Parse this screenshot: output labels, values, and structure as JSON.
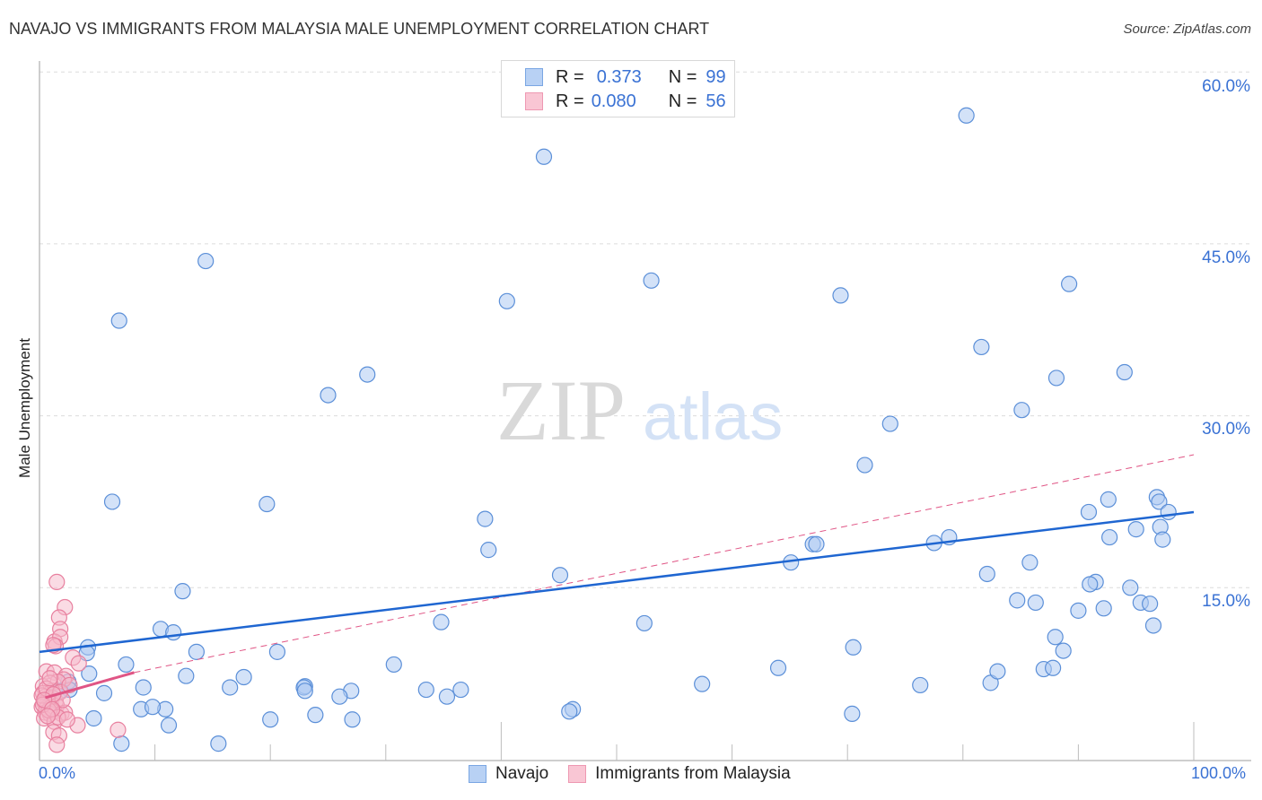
{
  "header": {
    "title": "NAVAJO VS IMMIGRANTS FROM MALAYSIA MALE UNEMPLOYMENT CORRELATION CHART",
    "source": "Source: ZipAtlas.com"
  },
  "legend_top": {
    "rows": [
      {
        "r_label": "R =",
        "r_value": "0.373",
        "n_label": "N =",
        "n_value": "99"
      },
      {
        "r_label": "R =",
        "r_value": "0.080",
        "n_label": "N =",
        "n_value": "56"
      }
    ]
  },
  "legend_bottom": {
    "items": [
      {
        "label": "Navajo"
      },
      {
        "label": "Immigrants from Malaysia"
      }
    ]
  },
  "axes": {
    "ylabel": "Male Unemployment",
    "x_ticks": [
      "0.0%",
      "100.0%"
    ],
    "y_ticks": [
      "60.0%",
      "45.0%",
      "30.0%",
      "15.0%"
    ]
  },
  "watermark": {
    "zip": "ZIP",
    "atlas": "atlas"
  },
  "colors": {
    "navajo_fill": "#aecbf2",
    "navajo_stroke": "#5b8fd8",
    "navajo_line": "#1f66d1",
    "malaysia_fill": "#f6b7c9",
    "malaysia_stroke": "#e8809f",
    "malaysia_line": "#e05585",
    "axis_text": "#3a72d4"
  },
  "chart_data": {
    "type": "scatter",
    "title": "NAVAJO VS IMMIGRANTS FROM MALAYSIA MALE UNEMPLOYMENT CORRELATION CHART",
    "xlabel": "",
    "ylabel": "Male Unemployment",
    "xlim": [
      0,
      100
    ],
    "ylim": [
      0,
      62
    ],
    "x_tick_labels": [
      "0.0%",
      "100.0%"
    ],
    "y_tick_labels": [
      "15.0%",
      "30.0%",
      "45.0%",
      "60.0%"
    ],
    "grid": "horizontal dashed",
    "legend_position": "bottom center",
    "series": [
      {
        "name": "Navajo",
        "R": 0.373,
        "N": 99,
        "trend": {
          "x": [
            0,
            100
          ],
          "y": [
            9.4,
            21.6
          ]
        },
        "points": [
          [
            80.3,
            56.2
          ],
          [
            43.7,
            52.6
          ],
          [
            14.4,
            43.5
          ],
          [
            53.0,
            41.8
          ],
          [
            69.4,
            40.5
          ],
          [
            89.2,
            41.5
          ],
          [
            40.5,
            40.0
          ],
          [
            6.9,
            38.3
          ],
          [
            81.6,
            36.0
          ],
          [
            28.4,
            33.6
          ],
          [
            94.0,
            33.8
          ],
          [
            88.1,
            33.3
          ],
          [
            25.0,
            31.8
          ],
          [
            85.1,
            30.5
          ],
          [
            73.7,
            29.3
          ],
          [
            71.5,
            25.7
          ],
          [
            6.3,
            22.5
          ],
          [
            19.7,
            22.3
          ],
          [
            96.8,
            22.9
          ],
          [
            97.0,
            22.5
          ],
          [
            92.6,
            22.7
          ],
          [
            90.9,
            21.6
          ],
          [
            97.8,
            21.6
          ],
          [
            38.6,
            21.0
          ],
          [
            95.0,
            20.1
          ],
          [
            92.7,
            19.4
          ],
          [
            97.1,
            20.3
          ],
          [
            97.3,
            19.2
          ],
          [
            78.8,
            19.4
          ],
          [
            77.5,
            18.9
          ],
          [
            67.0,
            18.8
          ],
          [
            67.3,
            18.8
          ],
          [
            38.9,
            18.3
          ],
          [
            65.1,
            17.2
          ],
          [
            85.8,
            17.2
          ],
          [
            82.1,
            16.2
          ],
          [
            45.1,
            16.1
          ],
          [
            91.5,
            15.5
          ],
          [
            91.0,
            15.3
          ],
          [
            94.5,
            15.0
          ],
          [
            12.4,
            14.7
          ],
          [
            84.7,
            13.9
          ],
          [
            86.3,
            13.7
          ],
          [
            95.4,
            13.7
          ],
          [
            96.2,
            13.6
          ],
          [
            92.2,
            13.2
          ],
          [
            90.0,
            13.0
          ],
          [
            34.8,
            12.0
          ],
          [
            52.4,
            11.9
          ],
          [
            96.5,
            11.7
          ],
          [
            10.5,
            11.4
          ],
          [
            11.6,
            11.1
          ],
          [
            88.0,
            10.7
          ],
          [
            4.2,
            9.8
          ],
          [
            13.6,
            9.4
          ],
          [
            4.1,
            9.3
          ],
          [
            20.6,
            9.4
          ],
          [
            70.5,
            9.8
          ],
          [
            88.7,
            9.5
          ],
          [
            30.7,
            8.3
          ],
          [
            7.5,
            8.3
          ],
          [
            4.3,
            7.5
          ],
          [
            12.7,
            7.3
          ],
          [
            17.7,
            7.2
          ],
          [
            2.5,
            6.8
          ],
          [
            57.4,
            6.6
          ],
          [
            76.3,
            6.5
          ],
          [
            23.0,
            6.4
          ],
          [
            22.9,
            6.3
          ],
          [
            82.4,
            6.7
          ],
          [
            83.0,
            7.7
          ],
          [
            87.0,
            7.9
          ],
          [
            87.8,
            8.0
          ],
          [
            64.0,
            8.0
          ],
          [
            23.0,
            6.0
          ],
          [
            2.6,
            6.1
          ],
          [
            1.8,
            6.0
          ],
          [
            5.6,
            5.8
          ],
          [
            16.5,
            6.3
          ],
          [
            27.0,
            6.0
          ],
          [
            35.3,
            5.5
          ],
          [
            26.0,
            5.5
          ],
          [
            9.0,
            6.3
          ],
          [
            8.8,
            4.4
          ],
          [
            10.9,
            4.4
          ],
          [
            46.2,
            4.4
          ],
          [
            45.9,
            4.2
          ],
          [
            70.4,
            4.0
          ],
          [
            11.2,
            3.0
          ],
          [
            20.0,
            3.5
          ],
          [
            27.1,
            3.5
          ],
          [
            23.9,
            3.9
          ],
          [
            4.7,
            3.6
          ],
          [
            7.1,
            1.4
          ],
          [
            15.5,
            1.4
          ],
          [
            36.5,
            6.1
          ],
          [
            33.5,
            6.1
          ],
          [
            9.8,
            4.6
          ],
          [
            1.0,
            5.5
          ]
        ]
      },
      {
        "name": "Immigrants from Malaysia",
        "R": 0.08,
        "N": 56,
        "trend_solid": {
          "x": [
            0.5,
            8.2
          ],
          "y": [
            5.4,
            7.6
          ]
        },
        "trend_dashed": {
          "x": [
            8.2,
            100
          ],
          "y": [
            7.6,
            26.6
          ]
        },
        "points": [
          [
            1.5,
            15.5
          ],
          [
            2.2,
            13.3
          ],
          [
            1.7,
            12.4
          ],
          [
            1.8,
            11.4
          ],
          [
            1.3,
            10.3
          ],
          [
            1.8,
            10.7
          ],
          [
            1.4,
            9.9
          ],
          [
            1.2,
            10.0
          ],
          [
            2.9,
            8.9
          ],
          [
            3.4,
            8.4
          ],
          [
            0.6,
            7.7
          ],
          [
            1.3,
            7.6
          ],
          [
            2.3,
            7.3
          ],
          [
            2.1,
            7.0
          ],
          [
            1.6,
            6.8
          ],
          [
            0.3,
            6.4
          ],
          [
            0.9,
            6.7
          ],
          [
            1.1,
            6.0
          ],
          [
            0.3,
            5.8
          ],
          [
            0.5,
            5.5
          ],
          [
            0.8,
            5.3
          ],
          [
            1.1,
            5.4
          ],
          [
            0.4,
            5.0
          ],
          [
            0.7,
            4.9
          ],
          [
            1.0,
            5.0
          ],
          [
            1.4,
            5.1
          ],
          [
            0.2,
            4.6
          ],
          [
            0.6,
            4.5
          ],
          [
            1.0,
            4.6
          ],
          [
            1.5,
            4.7
          ],
          [
            0.5,
            4.1
          ],
          [
            0.9,
            4.0
          ],
          [
            1.3,
            4.2
          ],
          [
            1.9,
            4.0
          ],
          [
            2.2,
            4.1
          ],
          [
            0.4,
            3.6
          ],
          [
            1.3,
            3.3
          ],
          [
            3.3,
            3.0
          ],
          [
            1.2,
            2.4
          ],
          [
            1.7,
            2.1
          ],
          [
            1.5,
            1.3
          ],
          [
            6.8,
            2.6
          ],
          [
            0.2,
            5.6
          ],
          [
            0.6,
            6.2
          ],
          [
            1.8,
            5.9
          ],
          [
            2.0,
            5.2
          ],
          [
            0.8,
            4.3
          ],
          [
            1.6,
            3.7
          ],
          [
            0.3,
            4.8
          ],
          [
            1.2,
            5.7
          ],
          [
            2.6,
            6.5
          ],
          [
            0.9,
            7.1
          ],
          [
            0.4,
            5.2
          ],
          [
            1.1,
            4.4
          ],
          [
            2.4,
            3.5
          ],
          [
            0.7,
            3.8
          ]
        ]
      }
    ]
  }
}
